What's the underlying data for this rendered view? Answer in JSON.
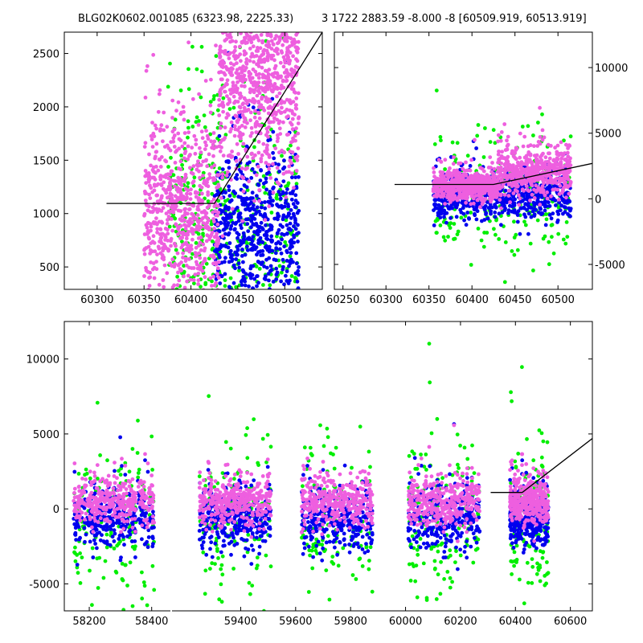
{
  "header": {
    "left_title": "BLG02K0602.001085 (6323.98, 2225.33)",
    "right_title": "3 1722 2883.59 -8.000 -8 [60509.919, 60513.919]"
  },
  "colors": {
    "green": "#00ee00",
    "blue": "#0000ee",
    "pink": "#ee5fdf",
    "line": "#000000"
  },
  "chart_data": [
    {
      "id": "top-left",
      "type": "scatter",
      "xlim": [
        60265,
        60540
      ],
      "ylim": [
        290,
        2700
      ],
      "xticks": [
        60300,
        60350,
        60400,
        60450,
        60500
      ],
      "yticks": [
        500,
        1000,
        1500,
        2000,
        2500
      ],
      "ytick_side": "left",
      "fit_line": [
        [
          60310,
          1095
        ],
        [
          60425,
          1095
        ],
        [
          60540,
          2700
        ]
      ],
      "point_groups": [
        {
          "color": "green",
          "n": 500,
          "segments": [
            [
              60375,
              60435
            ],
            [
              60435,
              60515
            ]
          ],
          "center": 780,
          "spread": 700
        },
        {
          "color": "blue",
          "n": 600,
          "segments": [
            [
              60425,
              60515
            ]
          ],
          "center": 850,
          "spread": 350
        },
        {
          "color": "pink",
          "n": 700,
          "segments": [
            [
              60350,
              60430
            ]
          ],
          "center": 1000,
          "spread": 450
        },
        {
          "color": "pink",
          "n": 900,
          "segments": [
            [
              60430,
              60515
            ]
          ],
          "center": 2300,
          "spread": 500
        }
      ]
    },
    {
      "id": "top-right",
      "type": "scatter",
      "xlim": [
        60240,
        60540
      ],
      "ylim": [
        -6900,
        12700
      ],
      "xticks": [
        60250,
        60300,
        60350,
        60400,
        60450,
        60500
      ],
      "yticks": [
        -5000,
        0,
        5000,
        10000
      ],
      "ytick_side": "right",
      "fit_line": [
        [
          60310,
          1095
        ],
        [
          60425,
          1095
        ],
        [
          60540,
          2700
        ]
      ],
      "point_groups": [
        {
          "color": "green",
          "n": 220,
          "segments": [
            [
              60355,
              60515
            ]
          ],
          "center": 0,
          "spread": 2500
        },
        {
          "color": "blue",
          "n": 700,
          "segments": [
            [
              60355,
              60515
            ]
          ],
          "center": 300,
          "spread": 900
        },
        {
          "color": "pink",
          "n": 600,
          "segments": [
            [
              60355,
              60430
            ]
          ],
          "center": 1000,
          "spread": 550
        },
        {
          "color": "pink",
          "n": 500,
          "segments": [
            [
              60430,
              60515
            ]
          ],
          "center": 2000,
          "spread": 900
        }
      ]
    },
    {
      "id": "bottom",
      "type": "scatter",
      "xlim": [
        58120,
        60680
      ],
      "ylim": [
        -6800,
        12500
      ],
      "xticks": [
        58200,
        58400,
        59400,
        59600,
        59800,
        60000,
        60200,
        60400,
        60600
      ],
      "yticks": [
        -5000,
        0,
        5000,
        10000
      ],
      "ytick_side": "left",
      "axis_break_x": 58600,
      "fit_line": [
        [
          60310,
          1095
        ],
        [
          60425,
          1095
        ],
        [
          60680,
          4700
        ]
      ],
      "point_groups": [
        {
          "color": "green",
          "n": 700,
          "segments": [
            [
              58150,
              58410
            ],
            [
              59250,
              59510
            ],
            [
              59620,
              59880
            ],
            [
              60010,
              60270
            ],
            [
              60380,
              60520
            ]
          ],
          "center": -800,
          "spread": 2600
        },
        {
          "color": "blue",
          "n": 1500,
          "segments": [
            [
              58150,
              58410
            ],
            [
              59250,
              59510
            ],
            [
              59620,
              59880
            ],
            [
              60010,
              60270
            ],
            [
              60380,
              60520
            ]
          ],
          "center": -700,
          "spread": 1000
        },
        {
          "color": "pink",
          "n": 1800,
          "segments": [
            [
              58150,
              58410
            ],
            [
              59250,
              59510
            ],
            [
              59620,
              59880
            ],
            [
              60010,
              60270
            ],
            [
              60380,
              60520
            ]
          ],
          "center": 500,
          "spread": 800
        }
      ]
    }
  ]
}
